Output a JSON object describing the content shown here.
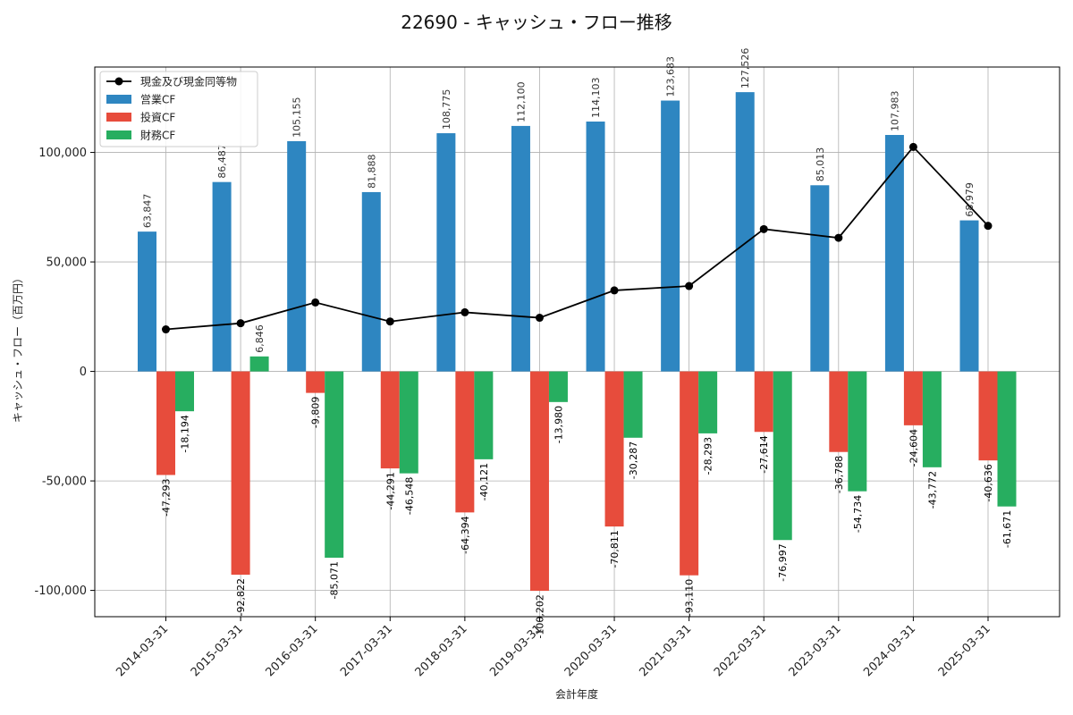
{
  "chart_data": {
    "type": "bar",
    "title": "22690 - キャッシュ・フロー推移",
    "xlabel": "会計年度",
    "ylabel": "キャッシュ・フロー（百万円）",
    "ylim": [
      -112000,
      139000
    ],
    "yticks": [
      -100000,
      -50000,
      0,
      50000,
      100000
    ],
    "ytick_labels": [
      "-100,000",
      "-50,000",
      "0",
      "50,000",
      "100,000"
    ],
    "grid": true,
    "legend_position": "top-left",
    "categories": [
      "2014-03-31",
      "2015-03-31",
      "2016-03-31",
      "2017-03-31",
      "2018-03-31",
      "2019-03-31",
      "2020-03-31",
      "2021-03-31",
      "2022-03-31",
      "2023-03-31",
      "2024-03-31",
      "2025-03-31"
    ],
    "series": [
      {
        "name": "営業CF",
        "kind": "bar",
        "color": "#2e86c1",
        "values": [
          63847,
          86487,
          105155,
          81888,
          108775,
          112100,
          114103,
          123683,
          127526,
          85013,
          107983,
          68979
        ],
        "labels": [
          "63,847",
          "86,487",
          "105,155",
          "81,888",
          "108,775",
          "112,100",
          "114,103",
          "123,683",
          "127,526",
          "85,013",
          "107,983",
          "68,979"
        ]
      },
      {
        "name": "投資CF",
        "kind": "bar",
        "color": "#e74c3c",
        "values": [
          -47293,
          -92822,
          -9809,
          -44291,
          -64394,
          -100202,
          -70811,
          -93110,
          -27614,
          -36788,
          -24604,
          -40636
        ],
        "labels": [
          "-47,293",
          "-92,822",
          "-9,809",
          "-44,291",
          "-64,394",
          "-100,202",
          "-70,811",
          "-93,110",
          "-27,614",
          "-36,788",
          "-24,604",
          "-40,636"
        ]
      },
      {
        "name": "財務CF",
        "kind": "bar",
        "color": "#27ae60",
        "values": [
          -18194,
          6846,
          -85071,
          -46548,
          -40121,
          -13980,
          -30287,
          -28293,
          -76997,
          -54734,
          -43772,
          -61671
        ],
        "labels": [
          "-18,194",
          "6,846",
          "-85,071",
          "-46,548",
          "-40,121",
          "-13,980",
          "-30,287",
          "-28,293",
          "-76,997",
          "-54,734",
          "-43,772",
          "-61,671"
        ]
      },
      {
        "name": "現金及び現金同等物",
        "kind": "line",
        "color": "#000000",
        "values": [
          19200,
          22000,
          31500,
          22800,
          27000,
          24500,
          37000,
          39000,
          65000,
          61000,
          102500,
          66500
        ]
      }
    ]
  }
}
